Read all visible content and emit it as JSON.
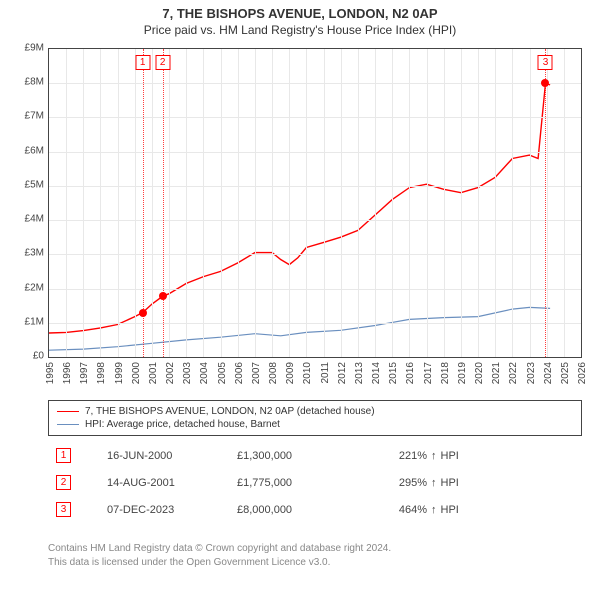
{
  "title": "7, THE BISHOPS AVENUE, LONDON, N2 0AP",
  "subtitle": "Price paid vs. HM Land Registry's House Price Index (HPI)",
  "chart": {
    "type": "line",
    "background_color": "#ffffff",
    "grid_color": "#e8e8e8",
    "border_color": "#444444",
    "y": {
      "min": 0,
      "max": 9000000,
      "ticks": [
        0,
        1000000,
        2000000,
        3000000,
        4000000,
        5000000,
        6000000,
        7000000,
        8000000,
        9000000
      ],
      "tick_labels": [
        "£0",
        "£1M",
        "£2M",
        "£3M",
        "£4M",
        "£5M",
        "£6M",
        "£7M",
        "£8M",
        "£9M"
      ],
      "label_fontsize": 10
    },
    "x": {
      "min": 1995,
      "max": 2026,
      "ticks": [
        1995,
        1996,
        1997,
        1998,
        1999,
        2000,
        2001,
        2002,
        2003,
        2004,
        2005,
        2006,
        2007,
        2008,
        2009,
        2010,
        2011,
        2012,
        2013,
        2014,
        2015,
        2016,
        2017,
        2018,
        2019,
        2020,
        2021,
        2022,
        2023,
        2024,
        2025,
        2026
      ],
      "label_fontsize": 10
    },
    "series": [
      {
        "name": "property",
        "label": "7, THE BISHOPS AVENUE, LONDON, N2 0AP (detached house)",
        "color": "#ff0000",
        "line_width": 1.4,
        "points": [
          [
            1995.0,
            700000
          ],
          [
            1996.0,
            720000
          ],
          [
            1997.0,
            770000
          ],
          [
            1998.0,
            850000
          ],
          [
            1999.0,
            950000
          ],
          [
            2000.0,
            1180000
          ],
          [
            2000.46,
            1300000
          ],
          [
            2001.0,
            1550000
          ],
          [
            2001.62,
            1775000
          ],
          [
            2002.0,
            1850000
          ],
          [
            2003.0,
            2150000
          ],
          [
            2004.0,
            2350000
          ],
          [
            2005.0,
            2500000
          ],
          [
            2006.0,
            2750000
          ],
          [
            2007.0,
            3050000
          ],
          [
            2008.0,
            3050000
          ],
          [
            2008.5,
            2850000
          ],
          [
            2009.0,
            2700000
          ],
          [
            2009.5,
            2900000
          ],
          [
            2010.0,
            3200000
          ],
          [
            2011.0,
            3350000
          ],
          [
            2012.0,
            3500000
          ],
          [
            2013.0,
            3700000
          ],
          [
            2014.0,
            4150000
          ],
          [
            2015.0,
            4600000
          ],
          [
            2016.0,
            4950000
          ],
          [
            2017.0,
            5050000
          ],
          [
            2018.0,
            4900000
          ],
          [
            2019.0,
            4800000
          ],
          [
            2020.0,
            4950000
          ],
          [
            2021.0,
            5250000
          ],
          [
            2022.0,
            5800000
          ],
          [
            2023.0,
            5900000
          ],
          [
            2023.5,
            5800000
          ],
          [
            2023.93,
            8000000
          ],
          [
            2024.2,
            7950000
          ]
        ]
      },
      {
        "name": "hpi",
        "label": "HPI: Average price, detached house, Barnet",
        "color": "#6a8fbf",
        "line_width": 1.2,
        "points": [
          [
            1995.0,
            200000
          ],
          [
            1997.0,
            230000
          ],
          [
            1999.0,
            300000
          ],
          [
            2001.0,
            400000
          ],
          [
            2003.0,
            500000
          ],
          [
            2005.0,
            580000
          ],
          [
            2007.0,
            680000
          ],
          [
            2008.5,
            620000
          ],
          [
            2010.0,
            720000
          ],
          [
            2012.0,
            780000
          ],
          [
            2014.0,
            920000
          ],
          [
            2016.0,
            1100000
          ],
          [
            2018.0,
            1150000
          ],
          [
            2020.0,
            1180000
          ],
          [
            2022.0,
            1400000
          ],
          [
            2023.0,
            1450000
          ],
          [
            2024.2,
            1420000
          ]
        ]
      }
    ],
    "transactions": [
      {
        "n": "1",
        "year": 2000.46,
        "price": 1300000,
        "date": "16-JUN-2000",
        "price_label": "£1,300,000",
        "pct": "221%",
        "arrow": "↑",
        "suffix": "HPI"
      },
      {
        "n": "2",
        "year": 2001.62,
        "price": 1775000,
        "date": "14-AUG-2001",
        "price_label": "£1,775,000",
        "pct": "295%",
        "arrow": "↑",
        "suffix": "HPI"
      },
      {
        "n": "3",
        "year": 2023.93,
        "price": 8000000,
        "date": "07-DEC-2023",
        "price_label": "£8,000,000",
        "pct": "464%",
        "arrow": "↑",
        "suffix": "HPI"
      }
    ],
    "marker_color": "#ff0000",
    "badge_border": "#ff0000"
  },
  "legend_fontsize": 10,
  "footer": {
    "line1": "Contains HM Land Registry data © Crown copyright and database right 2024.",
    "line2": "This data is licensed under the Open Government Licence v3.0."
  }
}
